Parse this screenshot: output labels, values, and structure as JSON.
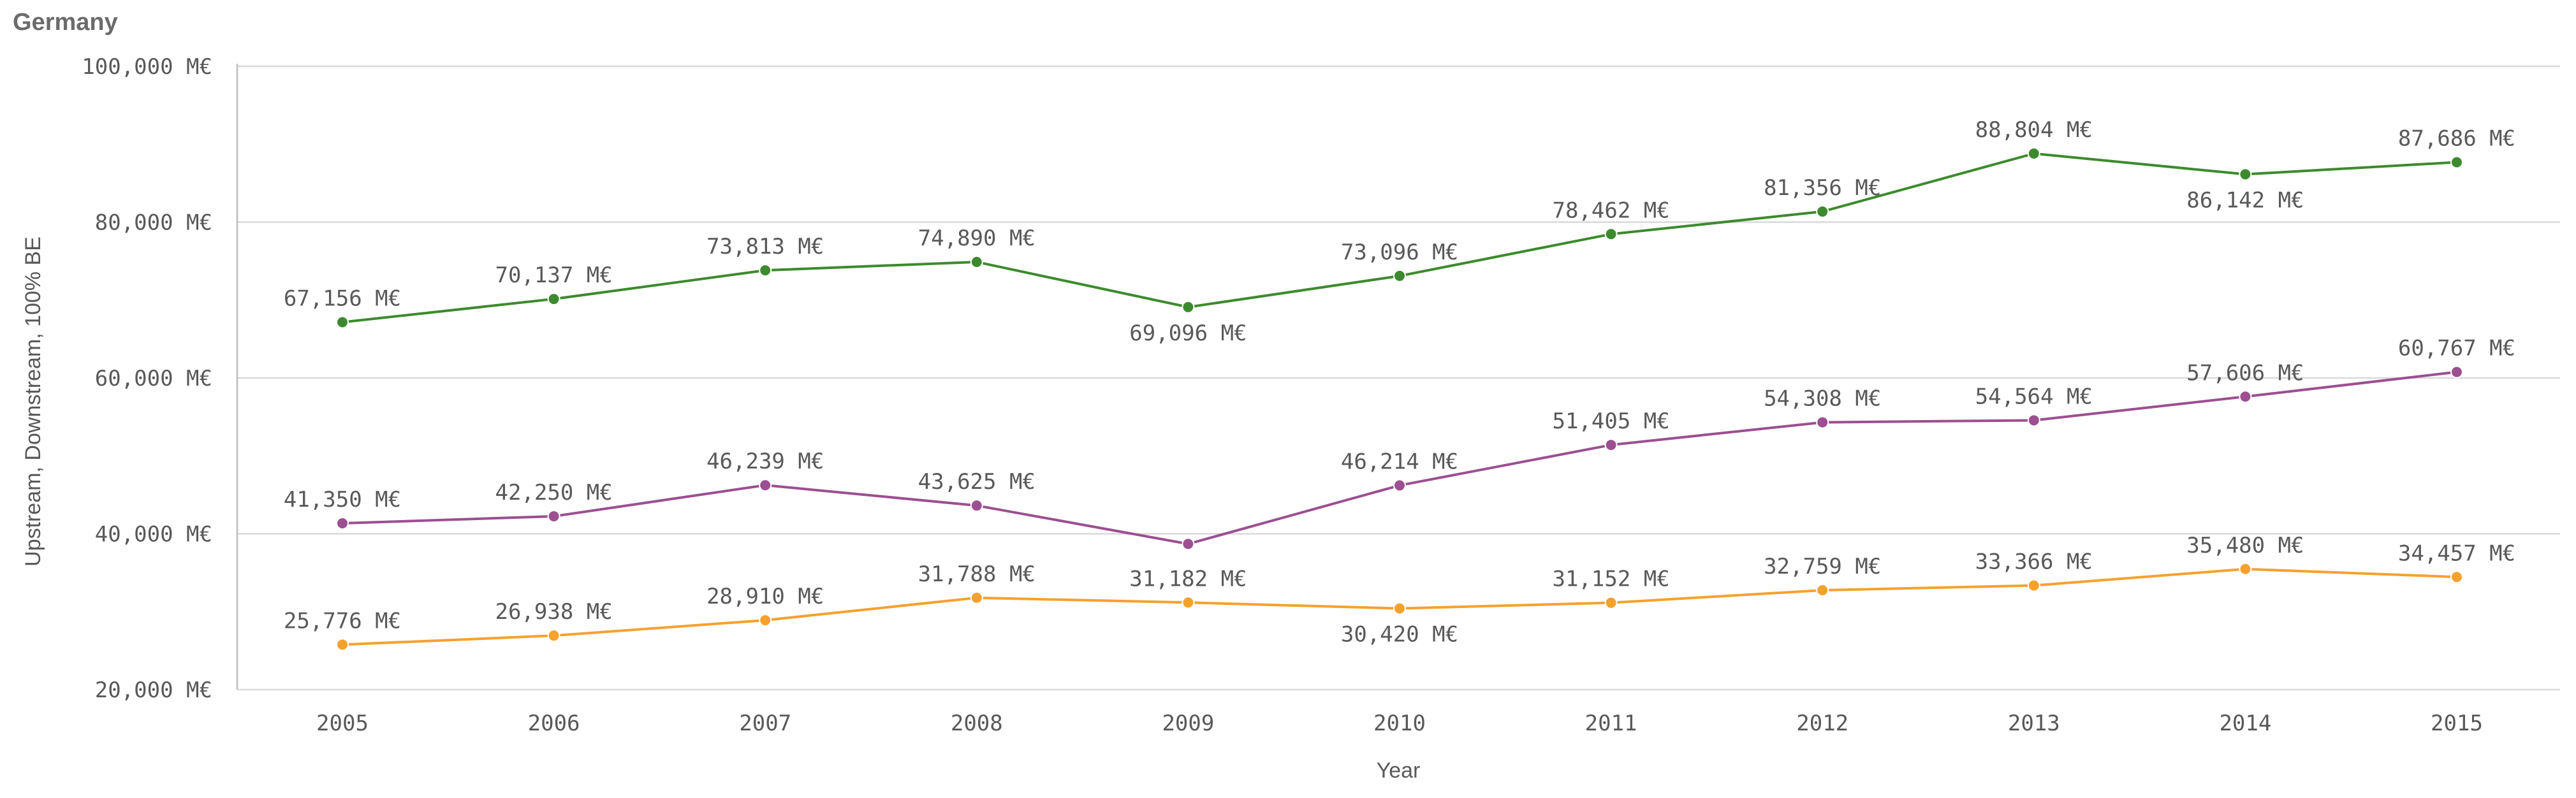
{
  "chart_data": {
    "type": "line",
    "title": "Germany",
    "xlabel": "Year",
    "ylabel": "Upstream, Downstream, 100% BE",
    "ylim": [
      20000,
      100000
    ],
    "yticks": [
      20000,
      40000,
      60000,
      80000,
      100000
    ],
    "ytick_labels": [
      "20,000 M€",
      "40,000 M€",
      "60,000 M€",
      "80,000 M€",
      "100,000 M€"
    ],
    "categories": [
      "2005",
      "2006",
      "2007",
      "2008",
      "2009",
      "2010",
      "2011",
      "2012",
      "2013",
      "2014",
      "2015"
    ],
    "series": [
      {
        "name": "green",
        "color": "#3d8a2e",
        "values": [
          67156,
          70137,
          73813,
          74890,
          69096,
          73096,
          78462,
          81356,
          88804,
          86142,
          87686
        ],
        "labels": [
          "67,156 M€",
          "70,137 M€",
          "73,813 M€",
          "74,890 M€",
          "69,096 M€",
          "73,096 M€",
          "78,462 M€",
          "81,356 M€",
          "88,804 M€",
          "86,142 M€",
          "87,686 M€"
        ],
        "label_pos": [
          "above",
          "above",
          "above",
          "above",
          "below",
          "above",
          "above",
          "above",
          "above",
          "below",
          "above"
        ]
      },
      {
        "name": "purple",
        "color": "#9c4f91",
        "values": [
          41350,
          42250,
          46239,
          43625,
          38700,
          46214,
          51405,
          54308,
          54564,
          57606,
          60767
        ],
        "labels": [
          "41,350 M€",
          "42,250 M€",
          "46,239 M€",
          "43,625 M€",
          null,
          "46,214 M€",
          "51,405 M€",
          "54,308 M€",
          "54,564 M€",
          "57,606 M€",
          "60,767 M€"
        ],
        "label_pos": [
          "above",
          "above",
          "above",
          "above",
          "none",
          "above",
          "above",
          "above",
          "above",
          "above",
          "above"
        ]
      },
      {
        "name": "orange",
        "color": "#f5a12e",
        "values": [
          25776,
          26938,
          28910,
          31788,
          31182,
          30420,
          31152,
          32759,
          33366,
          35480,
          34457
        ],
        "labels": [
          "25,776 M€",
          "26,938 M€",
          "28,910 M€",
          "31,788 M€",
          "31,182 M€",
          "30,420 M€",
          "31,152 M€",
          "32,759 M€",
          "33,366 M€",
          "35,480 M€",
          "34,457 M€"
        ],
        "label_pos": [
          "above",
          "above",
          "above",
          "above",
          "above",
          "below",
          "above",
          "above",
          "above",
          "above",
          "above"
        ]
      }
    ]
  }
}
